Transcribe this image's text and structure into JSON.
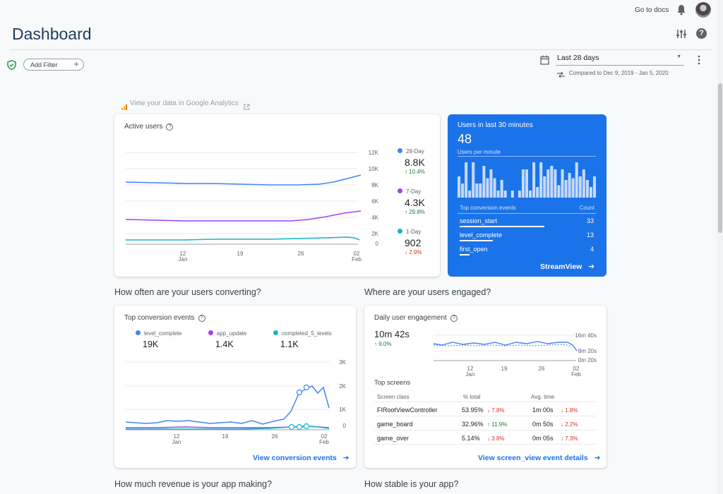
{
  "header": {
    "go_to_docs": "Go to docs",
    "page_title": "Dashboard"
  },
  "filters": {
    "add_filter": "Add Filter",
    "date_range": "Last 28 days",
    "compared_to": "Compared to Dec 9, 2019 - Jan 5, 2020"
  },
  "analytics_link": "View your data in Google Analytics",
  "active_users": {
    "title": "Active users",
    "y_ticks": [
      "12K",
      "10K",
      "8K",
      "6K",
      "4K",
      "2K",
      "0"
    ],
    "x_ticks": [
      "12",
      "19",
      "26",
      "02"
    ],
    "x_sub": [
      "Jan",
      "Feb"
    ],
    "legend": [
      {
        "label": "28-Day",
        "value": "8.8K",
        "change": "10.4%",
        "dir": "up",
        "color": "#4285f4"
      },
      {
        "label": "7-Day",
        "value": "4.3K",
        "change": "29.8%",
        "dir": "up",
        "color": "#a142f4"
      },
      {
        "label": "1-Day",
        "value": "902",
        "change": "2.9%",
        "dir": "down",
        "color": "#12b5cb"
      }
    ]
  },
  "realtime": {
    "title": "Users in last 30 minutes",
    "count": "48",
    "subtitle": "Users per minute",
    "bars": [
      0.6,
      0.4,
      1,
      0.2,
      1,
      0.4,
      0.4,
      0.9,
      0.55,
      0.8,
      0.55,
      0.2,
      0.5,
      0.2,
      0,
      0.2,
      0,
      0.2,
      0.8,
      0.8,
      0.2,
      1,
      0.3,
      1,
      0.6,
      0.8,
      0.9,
      0.8,
      0.35,
      0.8,
      0.5,
      0.7,
      0.55,
      1,
      0.6,
      0.8,
      0.5,
      0.3,
      0.6
    ],
    "col_events": "Top conversion events",
    "col_count": "Count",
    "rows": [
      {
        "name": "session_start",
        "count": "33",
        "fill": 1
      },
      {
        "name": "level_complete",
        "count": "13",
        "fill": 0.39
      },
      {
        "name": "first_open",
        "count": "4",
        "fill": 0.12
      }
    ],
    "streamview": "StreamView"
  },
  "sections": {
    "converting": "How often are your users converting?",
    "engaged": "Where are your users engaged?",
    "revenue": "How much revenue is your app making?",
    "stable": "How stable is your app?"
  },
  "conversion": {
    "title": "Top conversion events",
    "legend": [
      {
        "label": "level_complete",
        "value": "19K",
        "color": "#4285f4"
      },
      {
        "label": "app_update",
        "value": "1.4K",
        "color": "#a142f4"
      },
      {
        "label": "completed_5_levels",
        "value": "1.1K",
        "color": "#12b5cb"
      }
    ],
    "y_ticks": [
      "3K",
      "2K",
      "1K",
      "0"
    ],
    "x_ticks": [
      "12",
      "19",
      "26",
      "02"
    ],
    "x_sub": [
      "Jan",
      "Feb"
    ],
    "link": "View conversion events"
  },
  "engagement": {
    "title": "Daily user engagement",
    "value": "10m 42s",
    "change": "9.0%",
    "y_ticks": [
      "16m 40s",
      "8m 20s",
      "0m 20s"
    ],
    "x_ticks": [
      "12",
      "19",
      "26",
      "02"
    ],
    "x_sub": [
      "Jan",
      "Feb"
    ],
    "top_screens": "Top screens",
    "columns": [
      "Screen class",
      "% total",
      "Avg. time"
    ],
    "rows": [
      {
        "name": "FIRootViewController",
        "pct": "53.95%",
        "pct_change": "7.8%",
        "pct_dir": "down",
        "time": "1m 00s",
        "time_change": "1.8%",
        "time_dir": "down"
      },
      {
        "name": "game_board",
        "pct": "32.96%",
        "pct_change": "11.9%",
        "pct_dir": "up",
        "time": "0m 50s",
        "time_change": "2.2%",
        "time_dir": "down"
      },
      {
        "name": "game_over",
        "pct": "5.14%",
        "pct_change": "3.8%",
        "pct_dir": "down",
        "time": "0m 05s",
        "time_change": "7.3%",
        "time_dir": "down"
      }
    ],
    "link": "View screen_view event details"
  }
}
